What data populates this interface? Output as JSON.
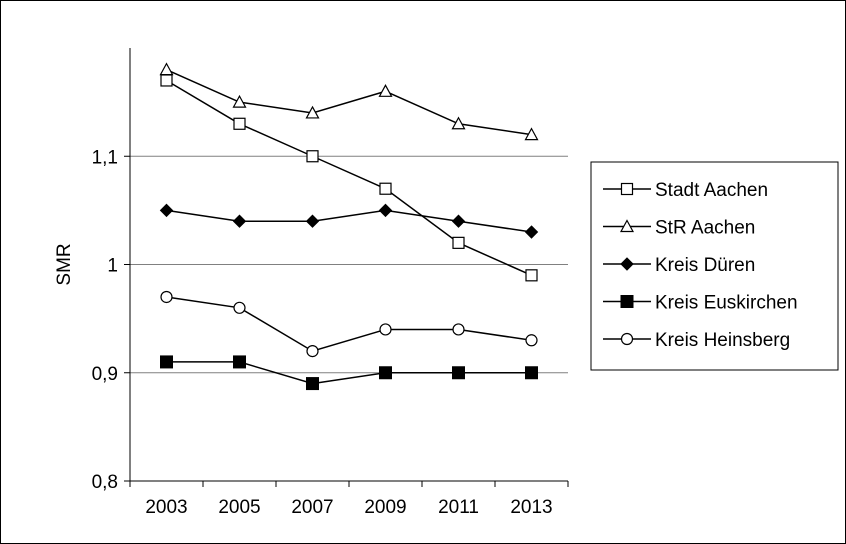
{
  "chart_data": {
    "type": "line",
    "title": "",
    "xlabel": "",
    "ylabel": "SMR",
    "x": [
      "2003",
      "2005",
      "2007",
      "2009",
      "2011",
      "2013"
    ],
    "ylim": [
      0.8,
      1.2
    ],
    "yticks": [
      "0,8",
      "0,9",
      "1",
      "1,1"
    ],
    "grid": true,
    "legend_position": "right",
    "series": [
      {
        "name": "Stadt Aachen",
        "marker": "square-open",
        "values": [
          1.17,
          1.13,
          1.1,
          1.07,
          1.02,
          0.99
        ]
      },
      {
        "name": "StR Aachen",
        "marker": "triangle-open",
        "values": [
          1.18,
          1.15,
          1.14,
          1.16,
          1.13,
          1.12
        ]
      },
      {
        "name": "Kreis Düren",
        "marker": "diamond-filled",
        "values": [
          1.05,
          1.04,
          1.04,
          1.05,
          1.04,
          1.03
        ]
      },
      {
        "name": "Kreis Euskirchen",
        "marker": "square-filled",
        "values": [
          0.91,
          0.91,
          0.89,
          0.9,
          0.9,
          0.9
        ]
      },
      {
        "name": "Kreis Heinsberg",
        "marker": "circle-open",
        "values": [
          0.97,
          0.96,
          0.92,
          0.94,
          0.94,
          0.93
        ]
      }
    ]
  }
}
